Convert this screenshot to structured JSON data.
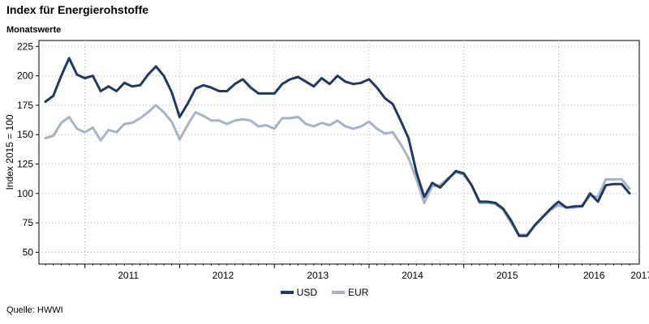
{
  "title": "Index für Energierohstoffe",
  "subtitle": "Monatswerte",
  "source": "Quelle: HWWI",
  "chart_data": {
    "type": "line",
    "ylabel": "Index 2015 = 100",
    "ylim": [
      40,
      230
    ],
    "yticks": [
      50,
      75,
      100,
      125,
      150,
      175,
      200,
      225
    ],
    "year_labels": [
      "2011",
      "2012",
      "2013",
      "2014",
      "2015",
      "2016",
      "2017"
    ],
    "start": "2010-08",
    "grid": true,
    "legend_position": "bottom-center",
    "series": [
      {
        "name": "USD",
        "color": "#1f3864",
        "values": [
          178,
          183,
          200,
          215,
          201,
          198,
          200,
          187,
          191,
          187,
          194,
          191,
          192,
          201,
          208,
          200,
          186,
          165,
          176,
          189,
          192,
          190,
          187,
          187,
          193,
          197,
          190,
          185,
          185,
          185,
          193,
          197,
          199,
          195,
          191,
          198,
          193,
          200,
          195,
          193,
          194,
          197,
          190,
          181,
          176,
          162,
          147,
          118,
          97,
          109,
          105,
          112,
          119,
          117,
          107,
          93,
          93,
          92,
          87,
          77,
          64,
          64,
          73,
          80,
          87,
          93,
          88,
          89,
          89,
          100,
          93,
          107,
          108,
          108,
          100
        ]
      },
      {
        "name": "EUR",
        "color": "#a6b2c8",
        "values": [
          147,
          149,
          160,
          165,
          155,
          152,
          156,
          145,
          154,
          152,
          159,
          160,
          164,
          169,
          175,
          169,
          161,
          146,
          158,
          169,
          166,
          162,
          162,
          159,
          162,
          163,
          162,
          157,
          158,
          155,
          164,
          164,
          165,
          159,
          157,
          160,
          158,
          162,
          157,
          155,
          157,
          161,
          155,
          151,
          152,
          142,
          130,
          112,
          92,
          106,
          107,
          113,
          118,
          116,
          107,
          92,
          92,
          91,
          86,
          75,
          65,
          65,
          73,
          80,
          86,
          90,
          88,
          88,
          90,
          98,
          97,
          112,
          112,
          112,
          104
        ]
      }
    ]
  }
}
